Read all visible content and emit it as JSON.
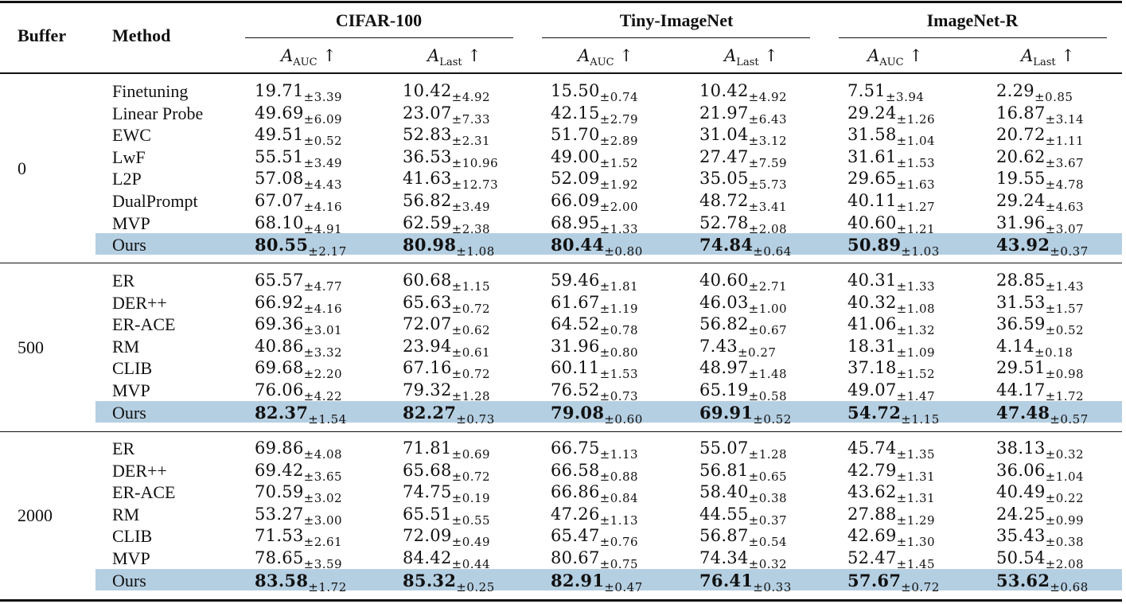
{
  "header": {
    "buffer": "Buffer",
    "method": "Method",
    "datasets": [
      "CIFAR-100",
      "Tiny-ImageNet",
      "ImageNet-R"
    ],
    "metrics": [
      {
        "symbol": "A",
        "sub": "AUC",
        "arrow": "↑"
      },
      {
        "symbol": "A",
        "sub": "Last",
        "arrow": "↑"
      }
    ]
  },
  "groups": [
    {
      "buffer": "0",
      "rows": [
        {
          "method": "Finetuning",
          "best": false,
          "values": [
            [
              "19.71",
              "±3.39"
            ],
            [
              "10.42",
              "±4.92"
            ],
            [
              "15.50",
              "±0.74"
            ],
            [
              "10.42",
              "±4.92"
            ],
            [
              "7.51",
              "±3.94"
            ],
            [
              "2.29",
              "±0.85"
            ]
          ]
        },
        {
          "method": "Linear Probe",
          "best": false,
          "values": [
            [
              "49.69",
              "±6.09"
            ],
            [
              "23.07",
              "±7.33"
            ],
            [
              "42.15",
              "±2.79"
            ],
            [
              "21.97",
              "±6.43"
            ],
            [
              "29.24",
              "±1.26"
            ],
            [
              "16.87",
              "±3.14"
            ]
          ]
        },
        {
          "method": "EWC",
          "best": false,
          "values": [
            [
              "49.51",
              "±0.52"
            ],
            [
              "52.83",
              "±2.31"
            ],
            [
              "51.70",
              "±2.89"
            ],
            [
              "31.04",
              "±3.12"
            ],
            [
              "31.58",
              "±1.04"
            ],
            [
              "20.72",
              "±1.11"
            ]
          ]
        },
        {
          "method": "LwF",
          "best": false,
          "values": [
            [
              "55.51",
              "±3.49"
            ],
            [
              "36.53",
              "±10.96"
            ],
            [
              "49.00",
              "±1.52"
            ],
            [
              "27.47",
              "±7.59"
            ],
            [
              "31.61",
              "±1.53"
            ],
            [
              "20.62",
              "±3.67"
            ]
          ]
        },
        {
          "method": "L2P",
          "best": false,
          "values": [
            [
              "57.08",
              "±4.43"
            ],
            [
              "41.63",
              "±12.73"
            ],
            [
              "52.09",
              "±1.92"
            ],
            [
              "35.05",
              "±5.73"
            ],
            [
              "29.65",
              "±1.63"
            ],
            [
              "19.55",
              "±4.78"
            ]
          ]
        },
        {
          "method": "DualPrompt",
          "best": false,
          "values": [
            [
              "67.07",
              "±4.16"
            ],
            [
              "56.82",
              "±3.49"
            ],
            [
              "66.09",
              "±2.00"
            ],
            [
              "48.72",
              "±3.41"
            ],
            [
              "40.11",
              "±1.27"
            ],
            [
              "29.24",
              "±4.63"
            ]
          ]
        },
        {
          "method": "MVP",
          "best": false,
          "values": [
            [
              "68.10",
              "±4.91"
            ],
            [
              "62.59",
              "±2.38"
            ],
            [
              "68.95",
              "±1.33"
            ],
            [
              "52.78",
              "±2.08"
            ],
            [
              "40.60",
              "±1.21"
            ],
            [
              "31.96",
              "±3.07"
            ]
          ]
        },
        {
          "method": "Ours",
          "best": true,
          "values": [
            [
              "80.55",
              "±2.17"
            ],
            [
              "80.98",
              "±1.08"
            ],
            [
              "80.44",
              "±0.80"
            ],
            [
              "74.84",
              "±0.64"
            ],
            [
              "50.89",
              "±1.03"
            ],
            [
              "43.92",
              "±0.37"
            ]
          ]
        }
      ]
    },
    {
      "buffer": "500",
      "rows": [
        {
          "method": "ER",
          "best": false,
          "values": [
            [
              "65.57",
              "±4.77"
            ],
            [
              "60.68",
              "±1.15"
            ],
            [
              "59.46",
              "±1.81"
            ],
            [
              "40.60",
              "±2.71"
            ],
            [
              "40.31",
              "±1.33"
            ],
            [
              "28.85",
              "±1.43"
            ]
          ]
        },
        {
          "method": "DER++",
          "best": false,
          "values": [
            [
              "66.92",
              "±4.16"
            ],
            [
              "65.63",
              "±0.72"
            ],
            [
              "61.67",
              "±1.19"
            ],
            [
              "46.03",
              "±1.00"
            ],
            [
              "40.32",
              "±1.08"
            ],
            [
              "31.53",
              "±1.57"
            ]
          ]
        },
        {
          "method": "ER-ACE",
          "best": false,
          "values": [
            [
              "69.36",
              "±3.01"
            ],
            [
              "72.07",
              "±0.62"
            ],
            [
              "64.52",
              "±0.78"
            ],
            [
              "56.82",
              "±0.67"
            ],
            [
              "41.06",
              "±1.32"
            ],
            [
              "36.59",
              "±0.52"
            ]
          ]
        },
        {
          "method": "RM",
          "best": false,
          "values": [
            [
              "40.86",
              "±3.32"
            ],
            [
              "23.94",
              "±0.61"
            ],
            [
              "31.96",
              "±0.80"
            ],
            [
              "7.43",
              "±0.27"
            ],
            [
              "18.31",
              "±1.09"
            ],
            [
              "4.14",
              "±0.18"
            ]
          ]
        },
        {
          "method": "CLIB",
          "best": false,
          "values": [
            [
              "69.68",
              "±2.20"
            ],
            [
              "67.16",
              "±0.72"
            ],
            [
              "60.11",
              "±1.53"
            ],
            [
              "48.97",
              "±1.48"
            ],
            [
              "37.18",
              "±1.52"
            ],
            [
              "29.51",
              "±0.98"
            ]
          ]
        },
        {
          "method": "MVP",
          "best": false,
          "values": [
            [
              "76.06",
              "±4.22"
            ],
            [
              "79.32",
              "±1.28"
            ],
            [
              "76.52",
              "±0.73"
            ],
            [
              "65.19",
              "±0.58"
            ],
            [
              "49.07",
              "±1.47"
            ],
            [
              "44.17",
              "±1.72"
            ]
          ]
        },
        {
          "method": "Ours",
          "best": true,
          "values": [
            [
              "82.37",
              "±1.54"
            ],
            [
              "82.27",
              "±0.73"
            ],
            [
              "79.08",
              "±0.60"
            ],
            [
              "69.91",
              "±0.52"
            ],
            [
              "54.72",
              "±1.15"
            ],
            [
              "47.48",
              "±0.57"
            ]
          ]
        }
      ]
    },
    {
      "buffer": "2000",
      "rows": [
        {
          "method": "ER",
          "best": false,
          "values": [
            [
              "69.86",
              "±4.08"
            ],
            [
              "71.81",
              "±0.69"
            ],
            [
              "66.75",
              "±1.13"
            ],
            [
              "55.07",
              "±1.28"
            ],
            [
              "45.74",
              "±1.35"
            ],
            [
              "38.13",
              "±0.32"
            ]
          ]
        },
        {
          "method": "DER++",
          "best": false,
          "values": [
            [
              "69.42",
              "±3.65"
            ],
            [
              "65.68",
              "±0.72"
            ],
            [
              "66.58",
              "±0.88"
            ],
            [
              "56.81",
              "±0.65"
            ],
            [
              "42.79",
              "±1.31"
            ],
            [
              "36.06",
              "±1.04"
            ]
          ]
        },
        {
          "method": "ER-ACE",
          "best": false,
          "values": [
            [
              "70.59",
              "±3.02"
            ],
            [
              "74.75",
              "±0.19"
            ],
            [
              "66.86",
              "±0.84"
            ],
            [
              "58.40",
              "±0.38"
            ],
            [
              "43.62",
              "±1.31"
            ],
            [
              "40.49",
              "±0.22"
            ]
          ]
        },
        {
          "method": "RM",
          "best": false,
          "values": [
            [
              "53.27",
              "±3.00"
            ],
            [
              "65.51",
              "±0.55"
            ],
            [
              "47.26",
              "±1.13"
            ],
            [
              "44.55",
              "±0.37"
            ],
            [
              "27.88",
              "±1.29"
            ],
            [
              "24.25",
              "±0.99"
            ]
          ]
        },
        {
          "method": "CLIB",
          "best": false,
          "values": [
            [
              "71.53",
              "±2.61"
            ],
            [
              "72.09",
              "±0.49"
            ],
            [
              "65.47",
              "±0.76"
            ],
            [
              "56.87",
              "±0.54"
            ],
            [
              "42.69",
              "±1.30"
            ],
            [
              "35.43",
              "±0.38"
            ]
          ]
        },
        {
          "method": "MVP",
          "best": false,
          "values": [
            [
              "78.65",
              "±3.59"
            ],
            [
              "84.42",
              "±0.44"
            ],
            [
              "80.67",
              "±0.75"
            ],
            [
              "74.34",
              "±0.32"
            ],
            [
              "52.47",
              "±1.45"
            ],
            [
              "50.54",
              "±2.08"
            ]
          ]
        },
        {
          "method": "Ours",
          "best": true,
          "values": [
            [
              "83.58",
              "±1.72"
            ],
            [
              "85.32",
              "±0.25"
            ],
            [
              "82.91",
              "±0.47"
            ],
            [
              "76.41",
              "±0.33"
            ],
            [
              "57.67",
              "±0.72"
            ],
            [
              "53.62",
              "±0.68"
            ]
          ]
        }
      ]
    }
  ]
}
